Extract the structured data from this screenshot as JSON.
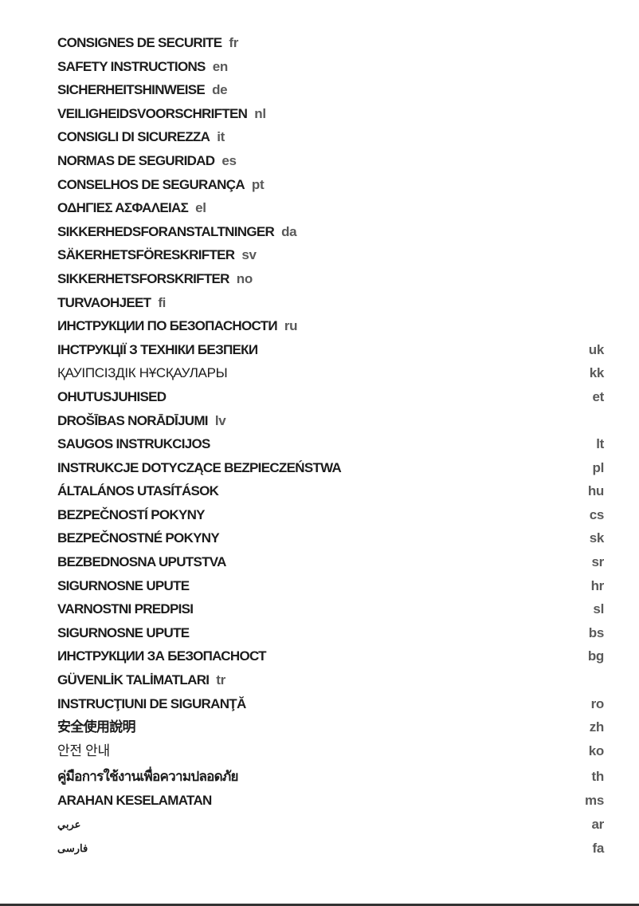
{
  "items": [
    {
      "title": "CONSIGNES DE SECURITE",
      "code": "fr"
    },
    {
      "title": "SAFETY INSTRUCTIONS",
      "code": "en"
    },
    {
      "title": "SICHERHEITSHINWEISE",
      "code": "de"
    },
    {
      "title": "VEILIGHEIDSVOORSCHRIFTEN",
      "code": "nl"
    },
    {
      "title": "CONSIGLI DI SICUREZZA",
      "code": "it"
    },
    {
      "title": "NORMAS DE SEGURIDAD",
      "code": "es"
    },
    {
      "title": "CONSELHOS DE SEGURANÇA",
      "code": "pt"
    },
    {
      "title": "ΟΔΗΓΙΕΣ ΑΣΦΑΛΕΙΑΣ",
      "code": "el"
    },
    {
      "title": "SIKKERHEDSFORANSTALTNINGER",
      "code": "da"
    },
    {
      "title": "SÄKERHETSFÖRESKRIFTER",
      "code": "sv"
    },
    {
      "title": "SIKKERHETSFORSKRIFTER",
      "code": "no"
    },
    {
      "title": "TURVAOHJEET",
      "code": "fi"
    },
    {
      "title": "ИНСТРУКЦИИ ПО БЕЗОПАСНОСТИ",
      "code": "ru"
    },
    {
      "title": "ІНСТРУКЦІЇ З ТЕХНІКИ БЕЗПЕКИ",
      "code": "uk"
    },
    {
      "title": "ҚАУІПСІЗДІК НҰСҚАУЛАРЫ",
      "code": "kk"
    },
    {
      "title": "OHUTUSJUHISED",
      "code": "et"
    },
    {
      "title": "DROŠĪBAS NORĀDĪJUMI",
      "code": "lv"
    },
    {
      "title": "SAUGOS INSTRUKCIJOS",
      "code": "lt"
    },
    {
      "title": "INSTRUKCJE DOTYCZĄCE BEZPIECZEŃSTWA",
      "code": "pl"
    },
    {
      "title": "ÁLTALÁNOS UTASÍTÁSOK",
      "code": "hu"
    },
    {
      "title": "BEZPEČNOSTÍ POKYNY",
      "code": "cs"
    },
    {
      "title": "BEZPEČNOSTNÉ POKYNY",
      "code": "sk"
    },
    {
      "title": "BEZBEDNOSNA UPUTSTVA",
      "code": "sr"
    },
    {
      "title": "SIGURNOSNE UPUTE",
      "code": "hr"
    },
    {
      "title": "VARNOSTNI PREDPISI",
      "code": "sl"
    },
    {
      "title": "SIGURNOSNE UPUTE",
      "code": "bs"
    },
    {
      "title": "ИНСТРУКЦИИ ЗА БЕЗОПАСНОСТ",
      "code": "bg"
    },
    {
      "title": "GÜVENLİK TALİMATLARI",
      "code": "tr"
    },
    {
      "title": "INSTRUCŢIUNI DE SIGURANŢĂ",
      "code": "ro"
    },
    {
      "title": "安全使用說明",
      "code": "zh"
    },
    {
      "title": "안전 안내",
      "code": "ko"
    },
    {
      "title": "คู่มือการใช้งานเพื่อความปลอดภัย",
      "code": "th"
    },
    {
      "title": "ARAHAN KESELAMATAN",
      "code": "ms"
    },
    {
      "title": "عربي",
      "code": "ar"
    },
    {
      "title": "فارسی",
      "code": "fa"
    }
  ]
}
